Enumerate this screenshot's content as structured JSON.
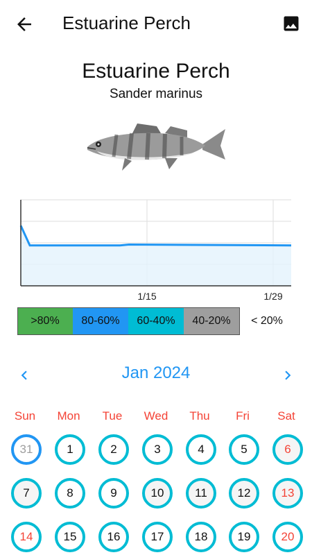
{
  "appbar": {
    "title": "Estuarine Perch",
    "back_icon": "arrow-back-icon",
    "image_icon": "image-icon"
  },
  "species": {
    "common_name": "Estuarine Perch",
    "scientific_name": "Sander marinus"
  },
  "chart_data": {
    "type": "area",
    "title": "",
    "xlabel": "",
    "ylabel": "",
    "x_tick_labels": [
      "1/15",
      "1/29"
    ],
    "x_ticks_day": [
      15,
      29
    ],
    "x_range_day": [
      1,
      31
    ],
    "y_range": [
      0,
      100
    ],
    "grid": true,
    "series": [
      {
        "values_day": [
          1,
          2,
          12,
          13,
          31
        ],
        "values": [
          70,
          47,
          47,
          48,
          47
        ],
        "color": "#2196f3"
      }
    ]
  },
  "legend": [
    {
      "label": ">80%",
      "color": "#4caf50"
    },
    {
      "label": "80-60%",
      "color": "#2196f3"
    },
    {
      "label": "60-40%",
      "color": "#00bcd4"
    },
    {
      "label": "40-20%",
      "color": "#9e9e9e"
    },
    {
      "label": "< 20%",
      "color": "#ffffff"
    }
  ],
  "calendar": {
    "month_label": "Jan 2024",
    "prev_icon": "chevron-left-icon",
    "next_icon": "chevron-right-icon",
    "weekdays": [
      "Sun",
      "Mon",
      "Tue",
      "Wed",
      "Thu",
      "Fri",
      "Sat"
    ],
    "weeks": [
      [
        "31",
        "1",
        "2",
        "3",
        "4",
        "5",
        "6"
      ],
      [
        "7",
        "8",
        "9",
        "10",
        "11",
        "12",
        "13"
      ],
      [
        "14",
        "15",
        "16",
        "17",
        "18",
        "19",
        "20"
      ]
    ],
    "accent_color": "#00bcd4",
    "weekend_color": "#f44336"
  }
}
